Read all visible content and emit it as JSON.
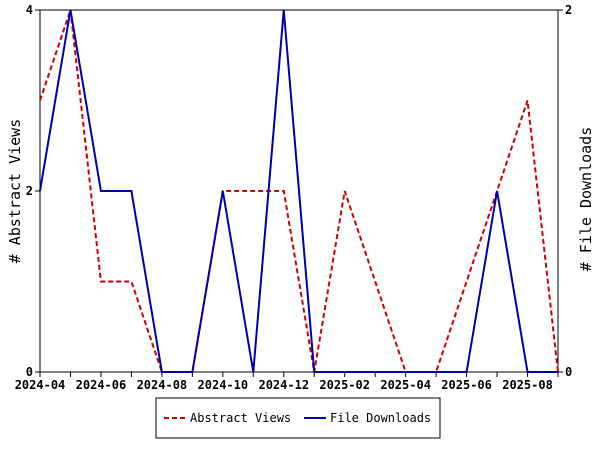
{
  "chart_data": {
    "type": "line",
    "x": [
      "2024-04",
      "2024-05",
      "2024-06",
      "2024-07",
      "2024-08",
      "2024-09",
      "2024-10",
      "2024-11",
      "2024-12",
      "2025-01",
      "2025-02",
      "2025-03",
      "2025-04",
      "2025-05",
      "2025-06",
      "2025-07",
      "2025-08",
      "2025-09"
    ],
    "x_tick_labels": [
      "2024-04",
      "2024-06",
      "2024-08",
      "2024-10",
      "2024-12",
      "2025-02",
      "2025-04",
      "2025-06",
      "2025-08"
    ],
    "series": [
      {
        "name": "Abstract Views",
        "axis": "left",
        "color": "#cc0000",
        "style": "dashed",
        "values": [
          3,
          4,
          1,
          1,
          0,
          0,
          2,
          2,
          2,
          0,
          2,
          1,
          0,
          0,
          1,
          2,
          3,
          0
        ]
      },
      {
        "name": "File Downloads",
        "axis": "right",
        "color": "#0000aa",
        "style": "solid",
        "values": [
          1,
          2,
          1,
          1,
          0,
          0,
          1,
          0,
          2,
          0,
          0,
          0,
          0,
          0,
          0,
          1,
          0,
          0
        ]
      }
    ],
    "ylabel_left": "# Abstract Views",
    "ylabel_right": "# File Downloads",
    "ylim_left": [
      0,
      4
    ],
    "ylim_right": [
      0,
      2
    ],
    "yticks_left": [
      "0",
      "2",
      "4"
    ],
    "yticks_right": [
      "0",
      "2"
    ],
    "grid": false,
    "legend_position": "bottom-center"
  }
}
